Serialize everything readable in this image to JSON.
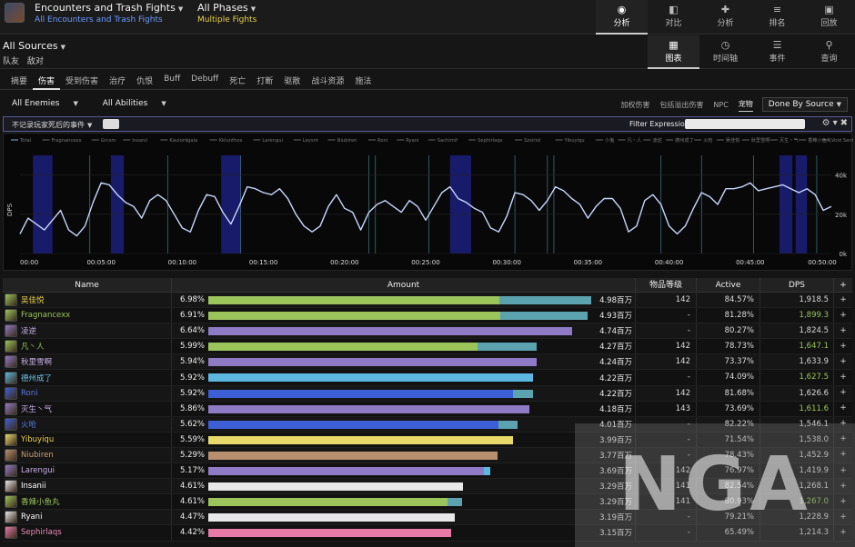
{
  "header": {
    "encounter_title": "Encounters and Trash Fights",
    "encounter_sub": "All Encounters and Trash Fights",
    "phase_title": "All Phases",
    "phase_sub": "Multiple Fights",
    "nav": [
      {
        "label": "分析",
        "icon": "eye-icon",
        "glyph": "◉",
        "active": true
      },
      {
        "label": "对比",
        "icon": "compare-icon",
        "glyph": "◧",
        "active": false
      },
      {
        "label": "分析",
        "icon": "puzzle-icon",
        "glyph": "✚",
        "active": false
      },
      {
        "label": "排名",
        "icon": "list-icon",
        "glyph": "≡",
        "active": false
      },
      {
        "label": "回放",
        "icon": "replay-icon",
        "glyph": "▣",
        "active": false
      }
    ]
  },
  "source": {
    "title": "All Sources",
    "sub": [
      "队友",
      "敌对"
    ],
    "nav": [
      {
        "label": "图表",
        "icon": "grid-icon",
        "glyph": "▦",
        "active": true
      },
      {
        "label": "时间轴",
        "icon": "clock-icon",
        "glyph": "◷",
        "active": false
      },
      {
        "label": "事件",
        "icon": "events-icon",
        "glyph": "☰",
        "active": false
      },
      {
        "label": "查询",
        "icon": "pin-icon",
        "glyph": "⚲",
        "active": false
      }
    ]
  },
  "tabs": [
    "摘要",
    "伤害",
    "受到伤害",
    "治疗",
    "仇恨",
    "Buff",
    "Debuff",
    "死亡",
    "打断",
    "驱散",
    "战斗资源",
    "施法"
  ],
  "active_tab": "伤害",
  "filters": {
    "enemies": "All Enemies",
    "abilities": "All Abilities",
    "options": [
      "加权伤害",
      "包括溢出伤害",
      "NPC",
      "宠物"
    ],
    "active_option": "宠物",
    "group_by": "Done By Source",
    "death_filter": "不记录玩家死后的事件",
    "expression_label": "Filter Expression:",
    "expression_value": ""
  },
  "chart_data": {
    "type": "line",
    "ylabel": "DPS",
    "x_ticks": [
      "00:00",
      "00:05:00",
      "00:10:00",
      "00:15:00",
      "00:20:00",
      "00:25:00",
      "00:30:00",
      "00:35:00",
      "00:40:00",
      "00:45:00",
      "00:50:00"
    ],
    "y_ticks": [
      "40k",
      "20k",
      "0k"
    ],
    "ylim": [
      0,
      50000
    ],
    "xlim_min": [
      0,
      50
    ],
    "legend": [
      "Total",
      "Fragnancexx",
      "Grcsm",
      "Insanii",
      "Kaulordgala",
      "Kklunthos",
      "Larengui",
      "Leysnt",
      "Niubiren",
      "Roni",
      "Ryani",
      "Sachimif",
      "Sephirlaqs",
      "Szsiriol",
      "Yibuyiqu",
      "小鬼",
      "凡丶人",
      "凌逆",
      "德州成了",
      "火呛",
      "吴佳悦",
      "秋里雪啊",
      "灭生丶气",
      "香辣小鱼丸",
      "Void Sentinel"
    ],
    "highlight_ranges_min": [
      [
        0.8,
        2.0
      ],
      [
        5.6,
        6.4
      ],
      [
        12.4,
        13.6
      ],
      [
        26.5,
        27.8
      ],
      [
        46.8,
        47.6
      ],
      [
        47.8,
        48.5
      ]
    ],
    "x_min": [
      0,
      0.5,
      1,
      1.5,
      2,
      2.5,
      3,
      3.5,
      4,
      4.5,
      5,
      5.5,
      6,
      6.5,
      7,
      7.5,
      8,
      8.5,
      9,
      9.5,
      10,
      10.5,
      11,
      11.5,
      12,
      12.5,
      13,
      13.5,
      14,
      14.5,
      15,
      15.5,
      16,
      16.5,
      17,
      17.5,
      18,
      18.5,
      19,
      19.5,
      20,
      20.5,
      21,
      21.5,
      22,
      22.5,
      23,
      23.5,
      24,
      24.5,
      25,
      25.5,
      26,
      26.5,
      27,
      27.5,
      28,
      28.5,
      29,
      29.5,
      30,
      30.5,
      31,
      31.5,
      32,
      32.5,
      33,
      33.5,
      34,
      34.5,
      35,
      35.5,
      36,
      36.5,
      37,
      37.5,
      38,
      38.5,
      39,
      39.5,
      40,
      40.5,
      41,
      41.5,
      42,
      42.5,
      43,
      43.5,
      44,
      44.5,
      45,
      45.5,
      46,
      46.5,
      47,
      47.5,
      48,
      48.5,
      49,
      49.5,
      50
    ],
    "total_dps": [
      10000,
      18000,
      15000,
      12000,
      17000,
      22000,
      12000,
      9000,
      14000,
      26000,
      36000,
      35000,
      30000,
      26000,
      24000,
      18000,
      27000,
      30000,
      27000,
      20000,
      13000,
      11000,
      22000,
      30000,
      29000,
      21000,
      15000,
      24000,
      34000,
      33000,
      31000,
      30000,
      33000,
      28000,
      20000,
      14000,
      11000,
      14000,
      24000,
      30000,
      23000,
      21000,
      12000,
      21000,
      25000,
      27000,
      24000,
      21000,
      27000,
      24000,
      17000,
      24000,
      31000,
      34000,
      28000,
      26000,
      23000,
      21000,
      13000,
      11000,
      19000,
      31000,
      30000,
      27000,
      22000,
      27000,
      34000,
      32000,
      28000,
      25000,
      18000,
      24000,
      28000,
      28000,
      23000,
      11000,
      14000,
      27000,
      30000,
      25000,
      14000,
      10000,
      14000,
      23000,
      31000,
      29000,
      25000,
      33000,
      33000,
      34000,
      36000,
      32000,
      33000,
      34000,
      35000,
      33000,
      31000,
      33000,
      30000,
      22000,
      24000
    ]
  },
  "table": {
    "columns": [
      "Name",
      "Amount",
      "物品等级",
      "Active",
      "DPS",
      "+"
    ],
    "rows": [
      {
        "name": "吴佳悦",
        "pct": "6.98%",
        "amount": "4.98百万",
        "ilvl": "142",
        "active": "84.57%",
        "dps": "1,918.5",
        "ncolor": "#e8d04a",
        "dcolor": "#d8d8d8",
        "bar": 0.98,
        "bar2": 0.24,
        "c1": "#9bc55a",
        "c2": "#5ca3b0"
      },
      {
        "name": "Fragnancexx",
        "pct": "6.91%",
        "amount": "4.93百万",
        "ilvl": "-",
        "active": "81.28%",
        "dps": "1,899.3",
        "ncolor": "#9bc55a",
        "dcolor": "#9bc55a",
        "bar": 0.97,
        "bar2": 0.23,
        "c1": "#9bc55a",
        "c2": "#5ca3b0"
      },
      {
        "name": "凌逆",
        "pct": "6.64%",
        "amount": "4.74百万",
        "ilvl": "-",
        "active": "80.27%",
        "dps": "1,824.5",
        "ncolor": "#c8b0e8",
        "dcolor": "#d8d8d8",
        "bar": 0.93,
        "bar2": 0.0,
        "c1": "#8f7ac5",
        "c2": "#8f7ac5"
      },
      {
        "name": "凡丶人",
        "pct": "5.99%",
        "amount": "4.27百万",
        "ilvl": "142",
        "active": "78.73%",
        "dps": "1,647.1",
        "ncolor": "#9bc55a",
        "dcolor": "#9bc55a",
        "bar": 0.84,
        "bar2": 0.18,
        "c1": "#9bc55a",
        "c2": "#5ca3b0"
      },
      {
        "name": "秋里雪啊",
        "pct": "5.94%",
        "amount": "4.24百万",
        "ilvl": "142",
        "active": "73.37%",
        "dps": "1,633.9",
        "ncolor": "#c8b0e8",
        "dcolor": "#d8d8d8",
        "bar": 0.84,
        "bar2": 0.0,
        "c1": "#8f7ac5",
        "c2": "#8f7ac5"
      },
      {
        "name": "德州成了",
        "pct": "5.92%",
        "amount": "4.22百万",
        "ilvl": "-",
        "active": "74.09%",
        "dps": "1,627.5",
        "ncolor": "#6fc5e8",
        "dcolor": "#9bc55a",
        "bar": 0.83,
        "bar2": 0.0,
        "c1": "#5cb8e0",
        "c2": "#5cb8e0"
      },
      {
        "name": "Roni",
        "pct": "5.92%",
        "amount": "4.22百万",
        "ilvl": "142",
        "active": "81.68%",
        "dps": "1,626.6",
        "ncolor": "#5a7ae8",
        "dcolor": "#d8d8d8",
        "bar": 0.83,
        "bar2": 0.06,
        "c1": "#3d5fd6",
        "c2": "#5ca3b0"
      },
      {
        "name": "灭生丶气",
        "pct": "5.86%",
        "amount": "4.18百万",
        "ilvl": "143",
        "active": "73.69%",
        "dps": "1,611.6",
        "ncolor": "#c8b0e8",
        "dcolor": "#9bc55a",
        "bar": 0.82,
        "bar2": 0.0,
        "c1": "#8f7ac5",
        "c2": "#8f7ac5"
      },
      {
        "name": "火呛",
        "pct": "5.62%",
        "amount": "4.01百万",
        "ilvl": "-",
        "active": "82.22%",
        "dps": "1,546.1",
        "ncolor": "#5a7ae8",
        "dcolor": "#d8d8d8",
        "bar": 0.79,
        "bar2": 0.06,
        "c1": "#3d5fd6",
        "c2": "#5ca3b0"
      },
      {
        "name": "Yibuyiqu",
        "pct": "5.59%",
        "amount": "3.99百万",
        "ilvl": "-",
        "active": "71.54%",
        "dps": "1,538.0",
        "ncolor": "#e8d04a",
        "dcolor": "#d8d8d8",
        "bar": 0.78,
        "bar2": 0.0,
        "c1": "#e8d96a",
        "c2": "#e8d96a"
      },
      {
        "name": "Niubiren",
        "pct": "5.29%",
        "amount": "3.77百万",
        "ilvl": "-",
        "active": "78.43%",
        "dps": "1,452.9",
        "ncolor": "#c8a070",
        "dcolor": "#d8d8d8",
        "bar": 0.74,
        "bar2": 0.0,
        "c1": "#b89070",
        "c2": "#b89070"
      },
      {
        "name": "Larengui",
        "pct": "5.17%",
        "amount": "3.69百万",
        "ilvl": "142",
        "active": "76.97%",
        "dps": "1,419.9",
        "ncolor": "#c8b0e8",
        "dcolor": "#d8d8d8",
        "bar": 0.72,
        "bar2": 0.02,
        "c1": "#8f7ac5",
        "c2": "#5cb8e0"
      },
      {
        "name": "Insanii",
        "pct": "4.61%",
        "amount": "3.29百万",
        "ilvl": "141",
        "active": "82.54%",
        "dps": "1,268.1",
        "ncolor": "#ffffff",
        "dcolor": "#d8d8d8",
        "bar": 0.65,
        "bar2": 0.0,
        "c1": "#e8e8e8",
        "c2": "#e8e8e8"
      },
      {
        "name": "香辣小鱼丸",
        "pct": "4.61%",
        "amount": "3.29百万",
        "ilvl": "141",
        "active": "80.93%",
        "dps": "1,267.0",
        "ncolor": "#9bc55a",
        "dcolor": "#9bc55a",
        "bar": 0.65,
        "bar2": 0.06,
        "c1": "#9bc55a",
        "c2": "#5ca3b0"
      },
      {
        "name": "Ryani",
        "pct": "4.47%",
        "amount": "3.19百万",
        "ilvl": "-",
        "active": "79.21%",
        "dps": "1,228.9",
        "ncolor": "#ffffff",
        "dcolor": "#d8d8d8",
        "bar": 0.63,
        "bar2": 0.0,
        "c1": "#e8e8e8",
        "c2": "#e8e8e8"
      },
      {
        "name": "Sephirlaqs",
        "pct": "4.42%",
        "amount": "3.15百万",
        "ilvl": "-",
        "active": "65.49%",
        "dps": "1,214.3",
        "ncolor": "#f08cb8",
        "dcolor": "#d8d8d8",
        "bar": 0.62,
        "bar2": 0.0,
        "c1": "#e87aa8",
        "c2": "#e87aa8"
      }
    ]
  },
  "watermark": "NGA"
}
